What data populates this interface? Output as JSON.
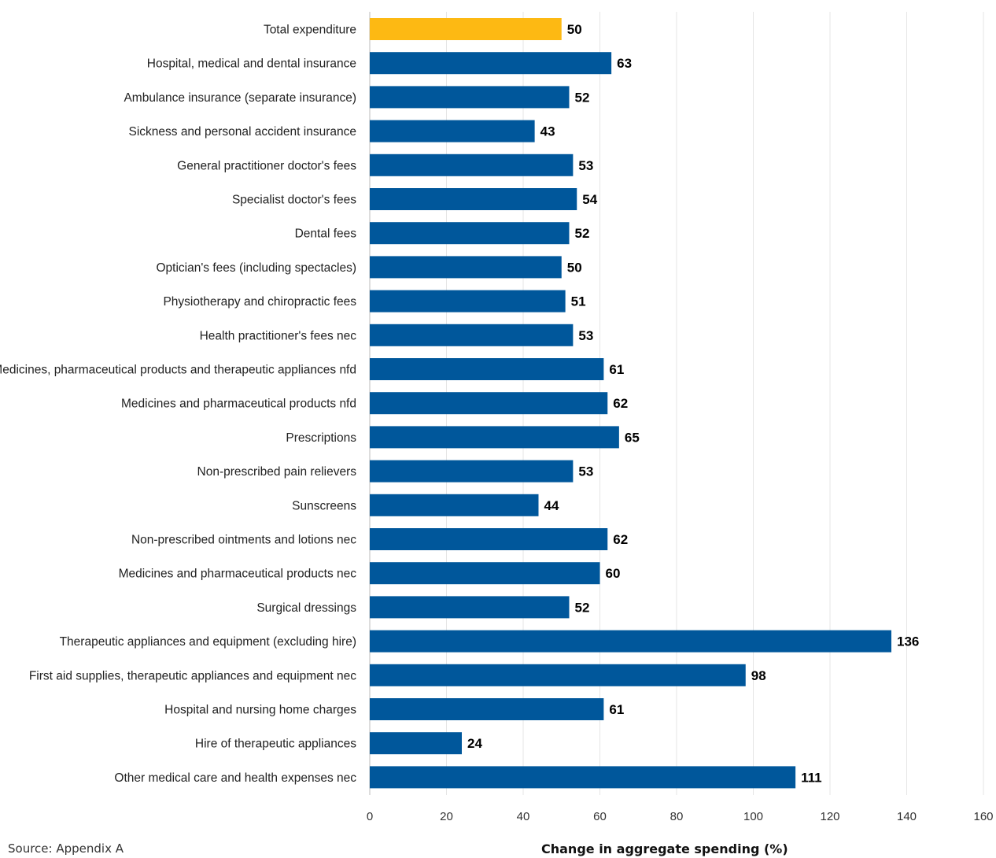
{
  "chart_data": {
    "type": "bar",
    "orientation": "horizontal",
    "categories": [
      "Total expenditure",
      "Hospital, medical and dental insurance",
      "Ambulance insurance (separate insurance)",
      "Sickness and personal accident insurance",
      "General practitioner doctor's fees",
      "Specialist doctor's fees",
      "Dental fees",
      "Optician's fees (including spectacles)",
      "Physiotherapy and chiropractic fees",
      "Health practitioner's fees nec",
      "Medicines, pharmaceutical products and therapeutic appliances nfd",
      "Medicines and pharmaceutical products nfd",
      "Prescriptions",
      "Non-prescribed pain relievers",
      "Sunscreens",
      "Non-prescribed ointments and lotions nec",
      "Medicines and pharmaceutical products nec",
      "Surgical dressings",
      "Therapeutic appliances and equipment (excluding hire)",
      "First aid supplies, therapeutic appliances and equipment nec",
      "Hospital and nursing home charges",
      "Hire of therapeutic appliances",
      "Other medical care and health expenses nec"
    ],
    "values": [
      50,
      63,
      52,
      43,
      53,
      54,
      52,
      50,
      51,
      53,
      61,
      62,
      65,
      53,
      44,
      62,
      60,
      52,
      136,
      98,
      61,
      24,
      111
    ],
    "bar_colors": [
      "#FDB913",
      "#00579B",
      "#00579B",
      "#00579B",
      "#00579B",
      "#00579B",
      "#00579B",
      "#00579B",
      "#00579B",
      "#00579B",
      "#00579B",
      "#00579B",
      "#00579B",
      "#00579B",
      "#00579B",
      "#00579B",
      "#00579B",
      "#00579B",
      "#00579B",
      "#00579B",
      "#00579B",
      "#00579B",
      "#00579B"
    ],
    "xlabel": "Change in aggregate spending (%)",
    "ylabel": "",
    "xlim": [
      0,
      160
    ],
    "xticks": [
      0,
      20,
      40,
      60,
      80,
      100,
      120,
      140,
      160
    ],
    "grid": true,
    "legend": "none"
  },
  "footer": {
    "source": "Source: Appendix A"
  },
  "colors": {
    "highlight": "#FDB913",
    "bar": "#00579B",
    "grid": "#E5E5E5",
    "axis": "#BBBBBB"
  }
}
